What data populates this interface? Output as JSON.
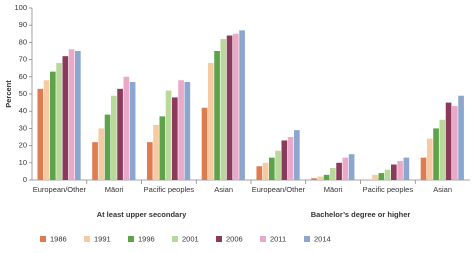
{
  "chart_data": {
    "type": "bar",
    "y_label": "Percent",
    "categories": [
      "European/Other",
      "Māori",
      "Pacific peoples",
      "Asian",
      "European/Other",
      "Māori",
      "Pacific peoples",
      "Asian"
    ],
    "group_labels": [
      "At least upper secondary",
      "Bachelor’s degree or higher"
    ],
    "series": [
      {
        "name": "1986",
        "color": "#e07b4f",
        "values": [
          53,
          22,
          22,
          42,
          8,
          1,
          0,
          13
        ]
      },
      {
        "name": "1991",
        "color": "#f6caa3",
        "values": [
          58,
          30,
          32,
          68,
          10,
          2,
          3,
          24
        ]
      },
      {
        "name": "1996",
        "color": "#5ea24a",
        "values": [
          63,
          38,
          37,
          75,
          13,
          3,
          4,
          30
        ]
      },
      {
        "name": "2001",
        "color": "#b9d99b",
        "values": [
          68,
          49,
          52,
          82,
          17,
          7,
          6,
          35
        ]
      },
      {
        "name": "2006",
        "color": "#8b3a5b",
        "values": [
          72,
          53,
          48,
          84,
          23,
          10,
          9,
          45
        ]
      },
      {
        "name": "2011",
        "color": "#eaa9c9",
        "values": [
          76,
          60,
          58,
          85,
          25,
          13,
          11,
          43
        ]
      },
      {
        "name": "2014",
        "color": "#8ba7d0",
        "values": [
          75,
          57,
          57,
          87,
          29,
          15,
          13,
          49
        ]
      }
    ],
    "ylim": [
      0,
      100
    ],
    "yticks": [
      0,
      10,
      20,
      30,
      40,
      50,
      60,
      70,
      80,
      90,
      100
    ],
    "grid": false
  }
}
